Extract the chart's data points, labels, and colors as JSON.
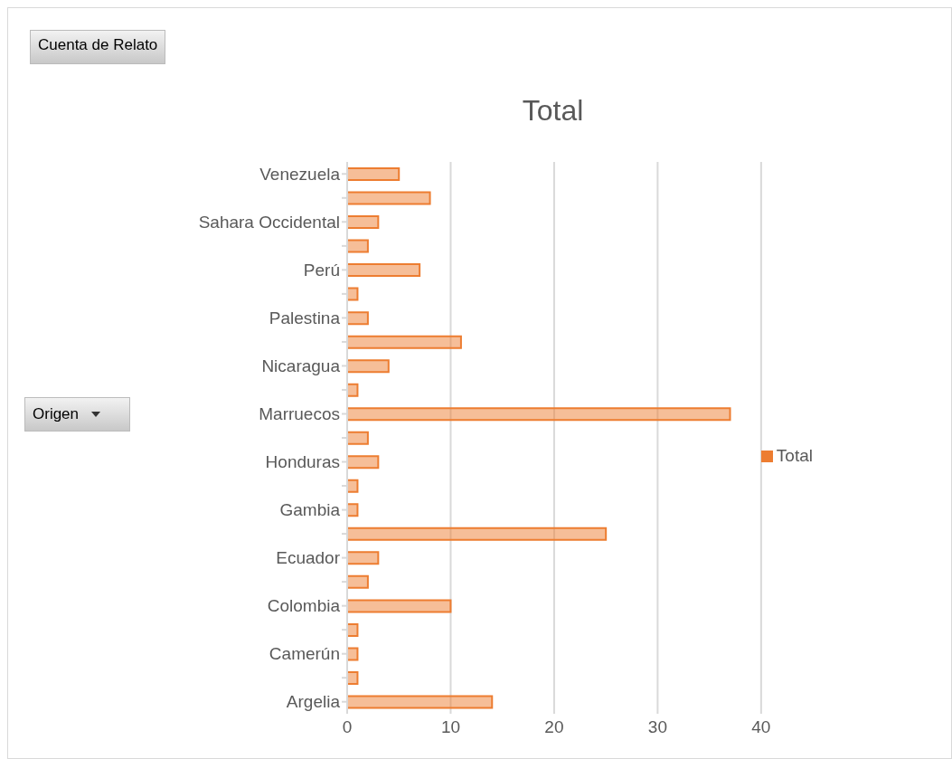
{
  "chart_data": {
    "type": "bar",
    "orientation": "horizontal",
    "title": "Total",
    "categories": [
      "Venezuela",
      null,
      "Sahara Occidental",
      null,
      "Perú",
      null,
      "Palestina",
      null,
      "Nicaragua",
      null,
      "Marruecos",
      null,
      "Honduras",
      null,
      "Gambia",
      null,
      "Ecuador",
      null,
      "Colombia",
      null,
      "Camerún ",
      null,
      "Argelia"
    ],
    "series": [
      {
        "name": "Total",
        "color": "#ed7d31",
        "values": [
          5,
          8,
          3,
          2,
          7,
          1,
          2,
          11,
          4,
          1,
          37,
          2,
          3,
          1,
          1,
          25,
          3,
          2,
          10,
          1,
          1,
          1,
          14
        ]
      }
    ],
    "xlim": [
      0,
      40
    ],
    "xticks": [
      0,
      10,
      20,
      30,
      40
    ],
    "grid": "x",
    "legend": "right",
    "annotations": [
      "Cuenta de Relato",
      "Origen"
    ]
  }
}
